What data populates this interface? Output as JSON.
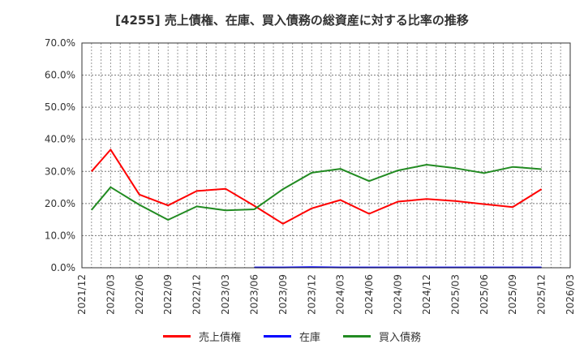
{
  "title": "[4255]  売上債権、在庫、買入債務の総資産に対する比率の推移",
  "chart_data": {
    "type": "line",
    "title": "[4255]  売上債権、在庫、買入債務の総資産に対する比率の推移",
    "xlabel": "",
    "ylabel": "",
    "ylim": [
      0,
      70
    ],
    "yticks": [
      "0.0%",
      "10.0%",
      "20.0%",
      "30.0%",
      "40.0%",
      "50.0%",
      "60.0%",
      "70.0%"
    ],
    "xticks": [
      "2021/12",
      "2022/03",
      "2022/06",
      "2022/09",
      "2022/12",
      "2023/03",
      "2023/06",
      "2023/09",
      "2023/12",
      "2024/03",
      "2024/06",
      "2024/09",
      "2024/12",
      "2025/03",
      "2025/06",
      "2025/09",
      "2025/12",
      "2026/03"
    ],
    "grid": true,
    "legend_position": "bottom",
    "x": [
      "2022/01",
      "2022/03",
      "2022/06",
      "2022/09",
      "2022/12",
      "2023/03",
      "2023/06",
      "2023/09",
      "2023/12",
      "2024/03",
      "2024/06",
      "2024/09",
      "2024/12",
      "2025/03",
      "2025/06",
      "2025/09",
      "2025/12"
    ],
    "x_month_index": [
      1,
      3,
      6,
      9,
      12,
      15,
      18,
      21,
      24,
      27,
      30,
      33,
      36,
      39,
      42,
      45,
      48
    ],
    "series": [
      {
        "name": "売上債権",
        "color": "#ff0000",
        "values": [
          30.0,
          36.8,
          22.8,
          19.4,
          23.9,
          24.6,
          19.3,
          13.7,
          18.5,
          21.1,
          16.8,
          20.6,
          21.4,
          20.8,
          19.8,
          18.9,
          24.5
        ]
      },
      {
        "name": "在庫",
        "color": "#0000ff",
        "values": [
          null,
          null,
          null,
          null,
          null,
          null,
          0.1,
          0.1,
          0.2,
          0.1,
          0.1,
          0.1,
          0.1,
          0.1,
          0.1,
          0.1,
          0.1
        ]
      },
      {
        "name": "買入債務",
        "color": "#228b22",
        "values": [
          18.0,
          25.1,
          19.6,
          14.9,
          19.1,
          17.9,
          18.2,
          24.5,
          29.6,
          30.8,
          27.0,
          30.3,
          32.1,
          31.0,
          29.5,
          31.4,
          30.7
        ]
      }
    ]
  },
  "legend": [
    {
      "label": "売上債権",
      "color": "#ff0000"
    },
    {
      "label": "在庫",
      "color": "#0000ff"
    },
    {
      "label": "買入債務",
      "color": "#228b22"
    }
  ]
}
